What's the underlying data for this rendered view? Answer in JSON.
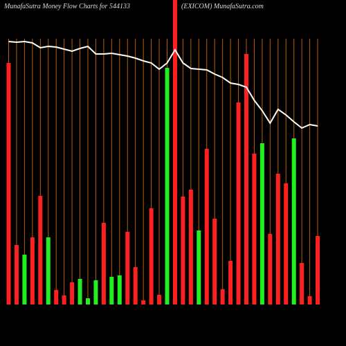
{
  "chart_data": {
    "type": "bar",
    "title": "MunafaSutra  Money Flow  Charts for 544133",
    "subtitle": "(EXICOM) MunafaSutra.com",
    "values": [
      349,
      86,
      72,
      97,
      157,
      97,
      21,
      13,
      32,
      37,
      9,
      35,
      118,
      40,
      42,
      105,
      54,
      6,
      139,
      14,
      342,
      440,
      156,
      166,
      107,
      225,
      124,
      22,
      63,
      292,
      362,
      218,
      233,
      102,
      189,
      175,
      240,
      60,
      12,
      99
    ],
    "colors": [
      "#ff2020",
      "#ff2020",
      "#22ee22",
      "#ff2020",
      "#ff2020",
      "#22ee22",
      "#ff2020",
      "#ff2020",
      "#ff2020",
      "#22ee22",
      "#22ee22",
      "#22ee22",
      "#ff2020",
      "#22ee22",
      "#22ee22",
      "#ff2020",
      "#ff2020",
      "#ff2020",
      "#ff2020",
      "#ff2020",
      "#22ee22",
      "#ff2020",
      "#ff2020",
      "#ff2020",
      "#22ee22",
      "#ff2020",
      "#ff2020",
      "#ff2020",
      "#ff2020",
      "#ff2020",
      "#ff2020",
      "#ff2020",
      "#22ee22",
      "#ff2020",
      "#ff2020",
      "#ff2020",
      "#22ee22",
      "#ff2020",
      "#ff2020",
      "#ff2020"
    ],
    "line": [
      380,
      379,
      380,
      378,
      371,
      373,
      372,
      369,
      366,
      370,
      373,
      362,
      362,
      363,
      361,
      359,
      356,
      352,
      349,
      340,
      349,
      368,
      349,
      341,
      340,
      339,
      333,
      328,
      320,
      318,
      314,
      295,
      280,
      262,
      282,
      274,
      264,
      255,
      260,
      258
    ],
    "line_color": "#ffffff",
    "grid_color": "#b8600a",
    "ylim": [
      0,
      440
    ]
  }
}
